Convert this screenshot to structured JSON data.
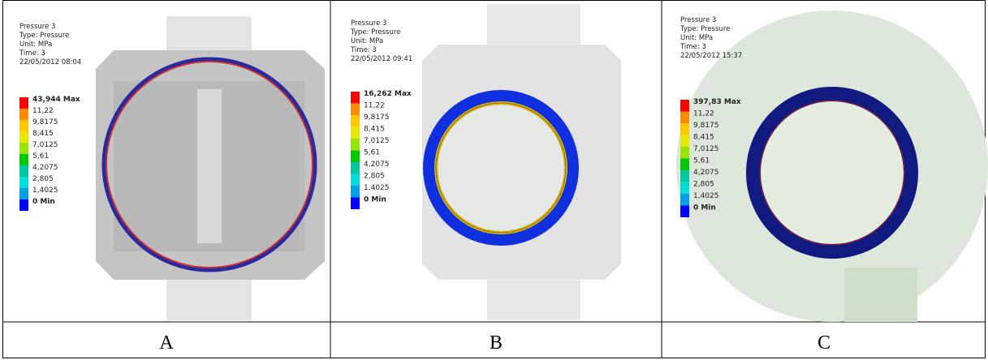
{
  "panels": [
    {
      "info": [
        "Pressure 3",
        "Type: Pressure",
        "Unit: MPa",
        "Time: 3",
        "22/05/2012 08:04"
      ],
      "legend": [
        "43,944 Max",
        "11,22",
        "9,8175",
        "8,415",
        "7,0125",
        "5,61",
        "4,2075",
        "2,805",
        "1,4025",
        "0 Min"
      ],
      "caption": "A"
    },
    {
      "info": [
        "Pressure 3",
        "Type: Pressure",
        "Unit: MPa",
        "Time: 3",
        "22/05/2012 09:41"
      ],
      "legend": [
        "16,262 Max",
        "11,22",
        "9,8175",
        "8,415",
        "7,0125",
        "5,61",
        "4,2075",
        "2,805",
        "1,4025",
        "0 Min"
      ],
      "caption": "B"
    },
    {
      "info": [
        "Pressure 3",
        "Type: Pressure",
        "Unit: MPa",
        "Time: 3",
        "22/05/2012 15:37"
      ],
      "legend": [
        "397,83 Max",
        "11,22",
        "9,8175",
        "8,415",
        "7,0125",
        "5,61",
        "4,2075",
        "2,805",
        "1,4025",
        "0 Min"
      ],
      "caption": "C"
    }
  ]
}
